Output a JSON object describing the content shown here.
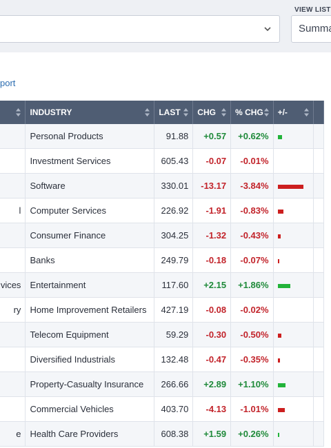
{
  "header": {
    "view_list_label": "VIEW LIST A",
    "view_select_value": "Summa"
  },
  "report_link": "port",
  "table": {
    "headers": {
      "first": "",
      "industry": "INDUSTRY",
      "last": "LAST",
      "chg": "CHG",
      "pct_chg": "% CHG",
      "plus_minus": "+/-"
    },
    "rows": [
      {
        "name": "",
        "industry": "Personal Products",
        "last": "91.88",
        "chg": "+0.57",
        "pct": "+0.62%",
        "dir": "up",
        "pct_value": 0.62
      },
      {
        "name": "",
        "industry": "Investment Services",
        "last": "605.43",
        "chg": "-0.07",
        "pct": "-0.01%",
        "dir": "down",
        "pct_value": -0.01
      },
      {
        "name": "",
        "industry": "Software",
        "last": "330.01",
        "chg": "-13.17",
        "pct": "-3.84%",
        "dir": "down",
        "pct_value": -3.84
      },
      {
        "name": "l",
        "industry": "Computer Services",
        "last": "226.92",
        "chg": "-1.91",
        "pct": "-0.83%",
        "dir": "down",
        "pct_value": -0.83
      },
      {
        "name": "",
        "industry": "Consumer Finance",
        "last": "304.25",
        "chg": "-1.32",
        "pct": "-0.43%",
        "dir": "down",
        "pct_value": -0.43
      },
      {
        "name": "",
        "industry": "Banks",
        "last": "249.79",
        "chg": "-0.18",
        "pct": "-0.07%",
        "dir": "down",
        "pct_value": -0.07
      },
      {
        "name": "vices",
        "industry": "Entertainment",
        "last": "117.60",
        "chg": "+2.15",
        "pct": "+1.86%",
        "dir": "up",
        "pct_value": 1.86
      },
      {
        "name": "ry",
        "industry": "Home Improvement Retailers",
        "last": "427.19",
        "chg": "-0.08",
        "pct": "-0.02%",
        "dir": "down",
        "pct_value": -0.02
      },
      {
        "name": "",
        "industry": "Telecom Equipment",
        "last": "59.29",
        "chg": "-0.30",
        "pct": "-0.50%",
        "dir": "down",
        "pct_value": -0.5
      },
      {
        "name": "",
        "industry": "Diversified Industrials",
        "last": "132.48",
        "chg": "-0.47",
        "pct": "-0.35%",
        "dir": "down",
        "pct_value": -0.35
      },
      {
        "name": "",
        "industry": "Property-Casualty Insurance",
        "last": "266.66",
        "chg": "+2.89",
        "pct": "+1.10%",
        "dir": "up",
        "pct_value": 1.1
      },
      {
        "name": "",
        "industry": "Commercial Vehicles",
        "last": "403.70",
        "chg": "-4.13",
        "pct": "-1.01%",
        "dir": "down",
        "pct_value": -1.01
      },
      {
        "name": "e",
        "industry": "Health Care Providers",
        "last": "608.38",
        "chg": "+1.59",
        "pct": "+0.26%",
        "dir": "up",
        "pct_value": 0.26
      }
    ]
  },
  "colors": {
    "up": "#22b33a",
    "down": "#cc1f1f"
  }
}
